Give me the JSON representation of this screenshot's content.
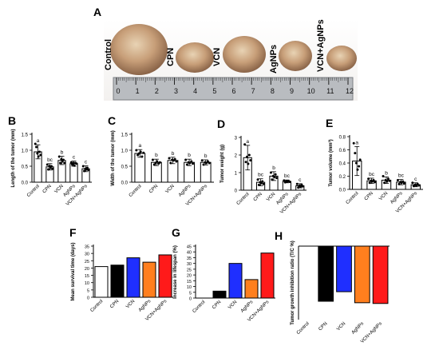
{
  "photo_panel": {
    "label": "A",
    "tumor_labels": [
      "Control",
      "CPN",
      "VCN",
      "AgNPs",
      "VCN+AgNPs"
    ],
    "ruler_numbers": [
      "0",
      "1",
      "2",
      "3",
      "4",
      "5",
      "6",
      "7",
      "8",
      "9",
      "10",
      "11",
      "12"
    ]
  },
  "chart_data": [
    {
      "panel": "B",
      "type": "bar",
      "categories": [
        "Control",
        "CPN",
        "VCN",
        "AgNPs",
        "VCN+AgNPs"
      ],
      "values": [
        0.95,
        0.48,
        0.68,
        0.58,
        0.42
      ],
      "errors": [
        0.22,
        0.1,
        0.13,
        0.08,
        0.09
      ],
      "sig_letters": [
        "a",
        "bc",
        "b",
        "c",
        "c"
      ],
      "points": [
        [
          1.2,
          1.1,
          0.9,
          0.8,
          0.95,
          0.85
        ],
        [
          0.55,
          0.4,
          0.5,
          0.45,
          0.5,
          0.42
        ],
        [
          0.8,
          0.6,
          0.72,
          0.65,
          0.7,
          0.6
        ],
        [
          0.62,
          0.55,
          0.6,
          0.52,
          0.6,
          0.58
        ],
        [
          0.5,
          0.35,
          0.42,
          0.4,
          0.45,
          0.38
        ]
      ],
      "ylabel": "Length of the tumor (mm)",
      "ylim": [
        0,
        1.5
      ],
      "yticks": [
        0.0,
        0.5,
        1.0,
        1.5
      ],
      "bar_fill": "#ffffff"
    },
    {
      "panel": "C",
      "type": "bar",
      "categories": [
        "Control",
        "CPN",
        "VCN",
        "AgNPs",
        "VCN+AgNPs"
      ],
      "values": [
        0.9,
        0.62,
        0.68,
        0.62,
        0.62
      ],
      "errors": [
        0.12,
        0.1,
        0.1,
        0.1,
        0.08
      ],
      "sig_letters": [
        "a",
        "b",
        "b",
        "b",
        "b"
      ],
      "points": [
        [
          1.0,
          0.85,
          0.9,
          0.95,
          0.8,
          0.92
        ],
        [
          0.7,
          0.55,
          0.6,
          0.65,
          0.58,
          0.62
        ],
        [
          0.75,
          0.6,
          0.7,
          0.68,
          0.72,
          0.65
        ],
        [
          0.7,
          0.55,
          0.62,
          0.6,
          0.65,
          0.58
        ],
        [
          0.68,
          0.55,
          0.62,
          0.6,
          0.65,
          0.6
        ]
      ],
      "ylabel": "Width of the tumor (mm)",
      "ylim": [
        0,
        1.5
      ],
      "yticks": [
        0.0,
        0.5,
        1.0,
        1.5
      ],
      "bar_fill": "#ffffff"
    },
    {
      "panel": "D",
      "type": "bar",
      "categories": [
        "Control",
        "CPN",
        "VCN",
        "AgNPs",
        "VCN+AgNPs"
      ],
      "values": [
        1.85,
        0.45,
        0.8,
        0.5,
        0.25
      ],
      "errors": [
        0.7,
        0.2,
        0.25,
        0.08,
        0.12
      ],
      "sig_letters": [
        "a",
        "bc",
        "b",
        "bc",
        "c"
      ],
      "points": [
        [
          2.6,
          1.6,
          1.9,
          1.5,
          2.0,
          1.7
        ],
        [
          0.6,
          0.3,
          0.45,
          0.4,
          0.5,
          0.35
        ],
        [
          1.0,
          0.6,
          0.8,
          0.75,
          0.9,
          0.7
        ],
        [
          0.55,
          0.45,
          0.5,
          0.5,
          0.52,
          0.48
        ],
        [
          0.35,
          0.15,
          0.25,
          0.2,
          0.3,
          0.22
        ]
      ],
      "ylabel": "Tumor weight (g)",
      "ylim": [
        0,
        3
      ],
      "yticks": [
        0,
        1,
        2,
        3
      ],
      "bar_fill": "#ffffff"
    },
    {
      "panel": "E",
      "type": "bar",
      "categories": [
        "Control",
        "CPN",
        "VCN",
        "AgNPs",
        "VCN+AgNPs"
      ],
      "values": [
        0.43,
        0.13,
        0.14,
        0.11,
        0.07
      ],
      "errors": [
        0.22,
        0.04,
        0.05,
        0.04,
        0.03
      ],
      "sig_letters": [
        "a",
        "bc",
        "b",
        "bc",
        "c"
      ],
      "points": [
        [
          0.7,
          0.55,
          0.4,
          0.3,
          0.35,
          0.45
        ],
        [
          0.16,
          0.1,
          0.13,
          0.12,
          0.14,
          0.11
        ],
        [
          0.2,
          0.1,
          0.14,
          0.12,
          0.16,
          0.13
        ],
        [
          0.14,
          0.08,
          0.11,
          0.1,
          0.12,
          0.09
        ],
        [
          0.1,
          0.05,
          0.07,
          0.06,
          0.08,
          0.06
        ]
      ],
      "ylabel": "Tumor volume (mm³)",
      "ylim": [
        0,
        0.8
      ],
      "yticks": [
        0.0,
        0.2,
        0.4,
        0.6,
        0.8
      ],
      "bar_fill": "#ffffff"
    },
    {
      "panel": "F",
      "type": "bar",
      "categories": [
        "Control",
        "CPN",
        "VCN",
        "AgNPs",
        "VCN+AgNPs"
      ],
      "values": [
        21,
        22,
        27,
        24,
        29
      ],
      "colors": [
        "#ffffff",
        "#000000",
        "#1f2fff",
        "#ff7f1e",
        "#ff1a1a"
      ],
      "ylabel": "Mean survival time (days)",
      "ylim": [
        0,
        35
      ],
      "yticks": [
        0,
        5,
        10,
        15,
        20,
        25,
        30,
        35
      ]
    },
    {
      "panel": "G",
      "type": "bar",
      "categories": [
        "Control",
        "CPN",
        "VCN",
        "AgNPs",
        "VCN+AgNPs"
      ],
      "values": [
        0,
        6,
        30,
        16,
        39
      ],
      "colors": [
        "#ffffff",
        "#000000",
        "#1f2fff",
        "#ff7f1e",
        "#ff1a1a"
      ],
      "ylabel": "Increase in lifespan (%)",
      "ylim": [
        0,
        45
      ],
      "yticks": [
        0,
        5,
        10,
        15,
        20,
        25,
        30,
        35,
        40,
        45
      ]
    },
    {
      "panel": "H",
      "type": "bar",
      "categories": [
        "Control",
        "CPN",
        "VCN",
        "AgNPs",
        "VCN+AgNPs"
      ],
      "values": [
        0,
        75,
        62,
        77,
        78
      ],
      "colors": [
        "#ffffff",
        "#000000",
        "#1f2fff",
        "#ff7f1e",
        "#ff1a1a"
      ],
      "ylabel": "Tumor growth inhibition ratio (T/C %)",
      "ylim": [
        0,
        100
      ]
    }
  ]
}
